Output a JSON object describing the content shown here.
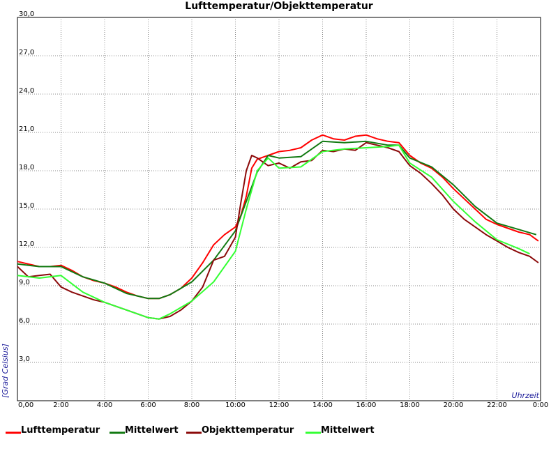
{
  "chart_data": {
    "type": "line",
    "title": "Lufttemperatur/Objekttemperatur",
    "xlabel": "Uhrzeit",
    "ylabel": "[Grad Celsius]",
    "xlim": [
      0,
      24
    ],
    "ylim": [
      0,
      30
    ],
    "grid": true,
    "legend_position": "bottom",
    "x_ticks": [
      "0,00",
      "2:00",
      "4:00",
      "6:00",
      "8:00",
      "10:00",
      "12:00",
      "14:00",
      "16:00",
      "18:00",
      "20:00",
      "22:00",
      "0:00"
    ],
    "y_ticks": [
      "3,0",
      "6,0",
      "9,0",
      "12,0",
      "15,0",
      "18,0",
      "21,0",
      "24,0",
      "27,0",
      "30,0"
    ],
    "series": [
      {
        "name": "Lufttemperatur",
        "color": "#ff0000",
        "x": [
          0,
          0.5,
          1.0,
          1.5,
          2.0,
          2.5,
          3.0,
          3.5,
          4.0,
          4.5,
          5.0,
          5.5,
          6.0,
          6.5,
          7.0,
          7.5,
          8.0,
          8.5,
          9.0,
          9.5,
          10.0,
          10.25,
          10.5,
          10.75,
          11.0,
          11.5,
          12.0,
          12.5,
          13.0,
          13.5,
          14.0,
          14.5,
          15.0,
          15.5,
          16.0,
          16.5,
          17.0,
          17.5,
          18.0,
          18.5,
          19.0,
          19.5,
          20.0,
          20.5,
          21.0,
          21.5,
          22.0,
          22.5,
          23.0,
          23.5,
          23.9
        ],
        "y": [
          10.9,
          10.7,
          10.5,
          10.5,
          10.6,
          10.2,
          9.7,
          9.4,
          9.2,
          8.9,
          8.5,
          8.2,
          8.0,
          8.0,
          8.3,
          8.8,
          9.6,
          10.8,
          12.2,
          13.0,
          13.6,
          14.5,
          16.0,
          18.2,
          18.9,
          19.2,
          19.5,
          19.6,
          19.8,
          20.4,
          20.8,
          20.5,
          20.4,
          20.7,
          20.8,
          20.5,
          20.3,
          20.2,
          19.2,
          18.6,
          18.2,
          17.5,
          16.6,
          15.8,
          15.0,
          14.2,
          13.8,
          13.5,
          13.2,
          13.0,
          12.5
        ]
      },
      {
        "name": "Mittelwert",
        "color": "#127a12",
        "x": [
          0,
          1.0,
          2.0,
          3.0,
          4.0,
          5.0,
          6.0,
          6.5,
          7.0,
          8.0,
          9.0,
          10.0,
          10.5,
          11.0,
          11.5,
          12.0,
          13.0,
          14.0,
          15.0,
          16.0,
          17.0,
          17.5,
          18.0,
          19.0,
          20.0,
          21.0,
          22.0,
          23.0,
          23.8
        ],
        "y": [
          10.7,
          10.5,
          10.5,
          9.7,
          9.2,
          8.4,
          8.0,
          8.0,
          8.3,
          9.3,
          11.0,
          13.3,
          15.6,
          17.9,
          19.2,
          19.0,
          19.1,
          20.3,
          20.2,
          20.3,
          20.0,
          20.0,
          19.0,
          18.3,
          16.9,
          15.2,
          13.9,
          13.4,
          13.0
        ]
      },
      {
        "name": "Objekttemperatur",
        "color": "#8b0a0a",
        "x": [
          0,
          0.5,
          1.0,
          1.5,
          2.0,
          2.5,
          3.0,
          3.5,
          4.0,
          4.5,
          5.0,
          5.5,
          6.0,
          6.5,
          7.0,
          7.5,
          8.0,
          8.5,
          9.0,
          9.5,
          10.0,
          10.25,
          10.5,
          10.75,
          11.0,
          11.5,
          12.0,
          12.5,
          13.0,
          13.5,
          14.0,
          14.5,
          15.0,
          15.5,
          16.0,
          16.5,
          17.0,
          17.5,
          18.0,
          18.5,
          19.0,
          19.5,
          20.0,
          20.5,
          21.0,
          21.5,
          22.0,
          22.5,
          23.0,
          23.5,
          23.9
        ],
        "y": [
          10.5,
          9.7,
          9.8,
          9.9,
          8.9,
          8.5,
          8.2,
          7.9,
          7.7,
          7.4,
          7.1,
          6.8,
          6.5,
          6.4,
          6.6,
          7.1,
          7.8,
          8.9,
          11.0,
          11.3,
          12.8,
          15.5,
          18.0,
          19.2,
          19.0,
          18.4,
          18.6,
          18.2,
          18.7,
          18.8,
          19.6,
          19.5,
          19.7,
          19.6,
          20.2,
          20.0,
          19.8,
          19.5,
          18.4,
          17.8,
          17.0,
          16.1,
          15.0,
          14.2,
          13.6,
          13.0,
          12.5,
          12.0,
          11.6,
          11.3,
          10.8
        ]
      },
      {
        "name": "Mittelwert",
        "color": "#33ff33",
        "x": [
          0,
          1.0,
          2.0,
          3.0,
          4.0,
          5.0,
          6.0,
          6.5,
          7.0,
          8.0,
          9.0,
          10.0,
          10.5,
          11.0,
          11.5,
          12.0,
          13.0,
          14.0,
          15.0,
          16.0,
          17.0,
          17.5,
          18.0,
          19.0,
          20.0,
          21.0,
          22.0,
          23.0,
          23.5
        ],
        "y": [
          9.8,
          9.6,
          9.8,
          8.5,
          7.7,
          7.1,
          6.5,
          6.4,
          6.8,
          7.8,
          9.3,
          11.7,
          15.0,
          18.0,
          19.0,
          18.2,
          18.3,
          19.5,
          19.7,
          19.8,
          19.9,
          20.0,
          18.6,
          17.5,
          15.6,
          14.0,
          12.6,
          11.9,
          11.5
        ]
      }
    ]
  }
}
